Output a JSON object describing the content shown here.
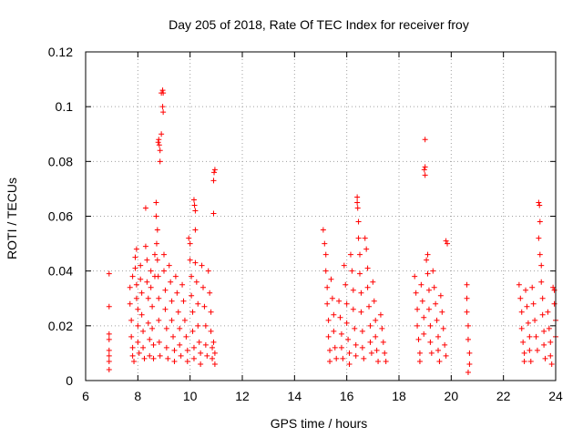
{
  "chart_data": {
    "type": "scatter",
    "title": "Day 205 of 2018, Rate Of TEC Index for receiver froy",
    "xlabel": "GPS time / hours",
    "ylabel": "ROTI / TECUs",
    "xlim": [
      6,
      24
    ],
    "ylim": [
      0,
      0.12
    ],
    "xticks": [
      6,
      8,
      10,
      12,
      14,
      16,
      18,
      20,
      22,
      24
    ],
    "xtick_labels": [
      "6",
      "8",
      "10",
      "12",
      "14",
      "16",
      "18",
      "20",
      "22",
      "24"
    ],
    "yticks": [
      0,
      0.02,
      0.04,
      0.06,
      0.08,
      0.1,
      0.12
    ],
    "ytick_labels": [
      "0",
      "0.02",
      "0.04",
      "0.06",
      "0.08",
      "0.1",
      "0.12"
    ],
    "grid": true,
    "marker": "+",
    "color": "#ff0000",
    "series": [
      {
        "name": "froy",
        "points": [
          [
            6.9,
            0.039
          ],
          [
            6.9,
            0.027
          ],
          [
            6.9,
            0.017
          ],
          [
            6.9,
            0.015
          ],
          [
            6.9,
            0.011
          ],
          [
            6.9,
            0.009
          ],
          [
            6.9,
            0.007
          ],
          [
            6.9,
            0.004
          ],
          [
            7.7,
            0.034
          ],
          [
            7.7,
            0.028
          ],
          [
            7.75,
            0.022
          ],
          [
            7.75,
            0.016
          ],
          [
            7.8,
            0.012
          ],
          [
            7.8,
            0.009
          ],
          [
            7.85,
            0.007
          ],
          [
            7.8,
            0.038
          ],
          [
            7.9,
            0.045
          ],
          [
            7.9,
            0.041
          ],
          [
            7.95,
            0.035
          ],
          [
            7.95,
            0.03
          ],
          [
            8.0,
            0.026
          ],
          [
            8.0,
            0.02
          ],
          [
            8.0,
            0.014
          ],
          [
            8.05,
            0.01
          ],
          [
            7.95,
            0.048
          ],
          [
            8.1,
            0.042
          ],
          [
            8.1,
            0.037
          ],
          [
            8.15,
            0.032
          ],
          [
            8.15,
            0.024
          ],
          [
            8.2,
            0.018
          ],
          [
            8.2,
            0.012
          ],
          [
            8.25,
            0.008
          ],
          [
            8.3,
            0.063
          ],
          [
            8.3,
            0.049
          ],
          [
            8.35,
            0.044
          ],
          [
            8.35,
            0.036
          ],
          [
            8.4,
            0.03
          ],
          [
            8.4,
            0.021
          ],
          [
            8.45,
            0.015
          ],
          [
            8.45,
            0.009
          ],
          [
            8.5,
            0.04
          ],
          [
            8.5,
            0.034
          ],
          [
            8.55,
            0.027
          ],
          [
            8.55,
            0.019
          ],
          [
            8.6,
            0.013
          ],
          [
            8.6,
            0.008
          ],
          [
            8.65,
            0.046
          ],
          [
            8.65,
            0.038
          ],
          [
            8.7,
            0.065
          ],
          [
            8.7,
            0.06
          ],
          [
            8.75,
            0.055
          ],
          [
            8.72,
            0.05
          ],
          [
            8.75,
            0.044
          ],
          [
            8.78,
            0.038
          ],
          [
            8.8,
            0.03
          ],
          [
            8.8,
            0.022
          ],
          [
            8.8,
            0.088
          ],
          [
            8.82,
            0.086
          ],
          [
            8.85,
            0.084
          ],
          [
            8.85,
            0.08
          ],
          [
            8.9,
            0.09
          ],
          [
            8.78,
            0.087
          ],
          [
            8.82,
            0.014
          ],
          [
            8.85,
            0.009
          ],
          [
            8.95,
            0.106
          ],
          [
            8.97,
            0.105
          ],
          [
            8.95,
            0.1
          ],
          [
            8.97,
            0.098
          ],
          [
            8.9,
            0.105
          ],
          [
            9.0,
            0.046
          ],
          [
            9.0,
            0.04
          ],
          [
            9.05,
            0.033
          ],
          [
            9.05,
            0.026
          ],
          [
            9.1,
            0.019
          ],
          [
            9.1,
            0.012
          ],
          [
            9.15,
            0.008
          ],
          [
            9.2,
            0.042
          ],
          [
            9.25,
            0.036
          ],
          [
            9.3,
            0.029
          ],
          [
            9.3,
            0.022
          ],
          [
            9.35,
            0.016
          ],
          [
            9.4,
            0.011
          ],
          [
            9.4,
            0.007
          ],
          [
            9.45,
            0.038
          ],
          [
            9.5,
            0.032
          ],
          [
            9.55,
            0.025
          ],
          [
            9.6,
            0.019
          ],
          [
            9.6,
            0.013
          ],
          [
            9.65,
            0.009
          ],
          [
            9.7,
            0.035
          ],
          [
            9.75,
            0.029
          ],
          [
            9.8,
            0.022
          ],
          [
            9.85,
            0.016
          ],
          [
            9.9,
            0.011
          ],
          [
            9.9,
            0.007
          ],
          [
            9.95,
            0.052
          ],
          [
            10.0,
            0.05
          ],
          [
            10.0,
            0.044
          ],
          [
            10.05,
            0.038
          ],
          [
            10.05,
            0.031
          ],
          [
            10.1,
            0.025
          ],
          [
            10.1,
            0.018
          ],
          [
            10.15,
            0.012
          ],
          [
            10.15,
            0.008
          ],
          [
            10.15,
            0.066
          ],
          [
            10.17,
            0.064
          ],
          [
            10.2,
            0.062
          ],
          [
            10.2,
            0.055
          ],
          [
            10.2,
            0.043
          ],
          [
            10.25,
            0.036
          ],
          [
            10.3,
            0.028
          ],
          [
            10.3,
            0.02
          ],
          [
            10.35,
            0.014
          ],
          [
            10.4,
            0.01
          ],
          [
            10.4,
            0.006
          ],
          [
            10.45,
            0.042
          ],
          [
            10.5,
            0.034
          ],
          [
            10.55,
            0.027
          ],
          [
            10.6,
            0.02
          ],
          [
            10.6,
            0.013
          ],
          [
            10.65,
            0.009
          ],
          [
            10.7,
            0.04
          ],
          [
            10.75,
            0.032
          ],
          [
            10.8,
            0.025
          ],
          [
            10.8,
            0.018
          ],
          [
            10.85,
            0.012
          ],
          [
            10.85,
            0.008
          ],
          [
            10.9,
            0.014
          ],
          [
            10.9,
            0.073
          ],
          [
            10.95,
            0.077
          ],
          [
            10.92,
            0.076
          ],
          [
            10.9,
            0.061
          ],
          [
            10.95,
            0.01
          ],
          [
            10.95,
            0.006
          ],
          [
            15.1,
            0.055
          ],
          [
            15.15,
            0.05
          ],
          [
            15.2,
            0.046
          ],
          [
            15.2,
            0.04
          ],
          [
            15.25,
            0.034
          ],
          [
            15.25,
            0.028
          ],
          [
            15.3,
            0.022
          ],
          [
            15.3,
            0.016
          ],
          [
            15.35,
            0.011
          ],
          [
            15.35,
            0.007
          ],
          [
            15.4,
            0.037
          ],
          [
            15.45,
            0.03
          ],
          [
            15.5,
            0.024
          ],
          [
            15.5,
            0.018
          ],
          [
            15.55,
            0.012
          ],
          [
            15.6,
            0.008
          ],
          [
            15.7,
            0.029
          ],
          [
            15.75,
            0.023
          ],
          [
            15.8,
            0.017
          ],
          [
            15.8,
            0.012
          ],
          [
            15.85,
            0.008
          ],
          [
            15.9,
            0.042
          ],
          [
            15.95,
            0.035
          ],
          [
            16.0,
            0.028
          ],
          [
            16.0,
            0.021
          ],
          [
            16.05,
            0.015
          ],
          [
            16.1,
            0.01
          ],
          [
            16.1,
            0.006
          ],
          [
            16.15,
            0.046
          ],
          [
            16.2,
            0.04
          ],
          [
            16.25,
            0.033
          ],
          [
            16.25,
            0.026
          ],
          [
            16.3,
            0.019
          ],
          [
            16.35,
            0.013
          ],
          [
            16.35,
            0.009
          ],
          [
            16.4,
            0.067
          ],
          [
            16.4,
            0.065
          ],
          [
            16.42,
            0.063
          ],
          [
            16.45,
            0.058
          ],
          [
            16.45,
            0.052
          ],
          [
            16.5,
            0.046
          ],
          [
            16.5,
            0.039
          ],
          [
            16.55,
            0.032
          ],
          [
            16.55,
            0.025
          ],
          [
            16.6,
            0.018
          ],
          [
            16.6,
            0.012
          ],
          [
            16.65,
            0.008
          ],
          [
            16.7,
            0.052
          ],
          [
            16.75,
            0.048
          ],
          [
            16.8,
            0.041
          ],
          [
            16.8,
            0.034
          ],
          [
            16.85,
            0.027
          ],
          [
            16.9,
            0.02
          ],
          [
            16.9,
            0.014
          ],
          [
            16.95,
            0.01
          ],
          [
            17.0,
            0.036
          ],
          [
            17.05,
            0.029
          ],
          [
            17.1,
            0.022
          ],
          [
            17.1,
            0.016
          ],
          [
            17.15,
            0.011
          ],
          [
            17.2,
            0.007
          ],
          [
            17.3,
            0.024
          ],
          [
            17.35,
            0.019
          ],
          [
            17.4,
            0.014
          ],
          [
            17.45,
            0.01
          ],
          [
            17.5,
            0.007
          ],
          [
            18.6,
            0.038
          ],
          [
            18.65,
            0.032
          ],
          [
            18.7,
            0.026
          ],
          [
            18.7,
            0.02
          ],
          [
            18.75,
            0.015
          ],
          [
            18.8,
            0.01
          ],
          [
            18.8,
            0.007
          ],
          [
            18.85,
            0.035
          ],
          [
            18.9,
            0.029
          ],
          [
            18.95,
            0.023
          ],
          [
            18.95,
            0.017
          ],
          [
            19.0,
            0.088
          ],
          [
            19.0,
            0.078
          ],
          [
            18.97,
            0.077
          ],
          [
            19.0,
            0.075
          ],
          [
            19.05,
            0.044
          ],
          [
            19.1,
            0.046
          ],
          [
            19.1,
            0.039
          ],
          [
            19.15,
            0.033
          ],
          [
            19.15,
            0.026
          ],
          [
            19.2,
            0.02
          ],
          [
            19.2,
            0.014
          ],
          [
            19.25,
            0.01
          ],
          [
            19.3,
            0.04
          ],
          [
            19.35,
            0.034
          ],
          [
            19.4,
            0.028
          ],
          [
            19.45,
            0.022
          ],
          [
            19.5,
            0.016
          ],
          [
            19.5,
            0.011
          ],
          [
            19.55,
            0.007
          ],
          [
            19.6,
            0.031
          ],
          [
            19.65,
            0.025
          ],
          [
            19.7,
            0.019
          ],
          [
            19.75,
            0.013
          ],
          [
            19.8,
            0.009
          ],
          [
            19.8,
            0.051
          ],
          [
            19.85,
            0.05
          ],
          [
            20.6,
            0.035
          ],
          [
            20.6,
            0.03
          ],
          [
            20.6,
            0.025
          ],
          [
            20.65,
            0.02
          ],
          [
            20.65,
            0.015
          ],
          [
            20.7,
            0.01
          ],
          [
            20.7,
            0.006
          ],
          [
            20.65,
            0.003
          ],
          [
            22.6,
            0.035
          ],
          [
            22.65,
            0.03
          ],
          [
            22.7,
            0.025
          ],
          [
            22.7,
            0.019
          ],
          [
            22.75,
            0.014
          ],
          [
            22.8,
            0.01
          ],
          [
            22.8,
            0.007
          ],
          [
            22.85,
            0.033
          ],
          [
            22.9,
            0.027
          ],
          [
            22.95,
            0.021
          ],
          [
            23.0,
            0.016
          ],
          [
            23.0,
            0.011
          ],
          [
            23.05,
            0.007
          ],
          [
            23.1,
            0.034
          ],
          [
            23.15,
            0.028
          ],
          [
            23.2,
            0.022
          ],
          [
            23.25,
            0.016
          ],
          [
            23.3,
            0.011
          ],
          [
            23.35,
            0.065
          ],
          [
            23.38,
            0.064
          ],
          [
            23.4,
            0.058
          ],
          [
            23.35,
            0.052
          ],
          [
            23.4,
            0.046
          ],
          [
            23.45,
            0.042
          ],
          [
            23.45,
            0.036
          ],
          [
            23.5,
            0.03
          ],
          [
            23.5,
            0.024
          ],
          [
            23.55,
            0.018
          ],
          [
            23.55,
            0.013
          ],
          [
            23.6,
            0.008
          ],
          [
            23.7,
            0.025
          ],
          [
            23.75,
            0.019
          ],
          [
            23.8,
            0.014
          ],
          [
            23.8,
            0.009
          ],
          [
            23.85,
            0.006
          ],
          [
            23.9,
            0.034
          ],
          [
            23.95,
            0.033
          ],
          [
            23.95,
            0.028
          ],
          [
            24.0,
            0.022
          ],
          [
            24.0,
            0.016
          ]
        ]
      }
    ]
  }
}
